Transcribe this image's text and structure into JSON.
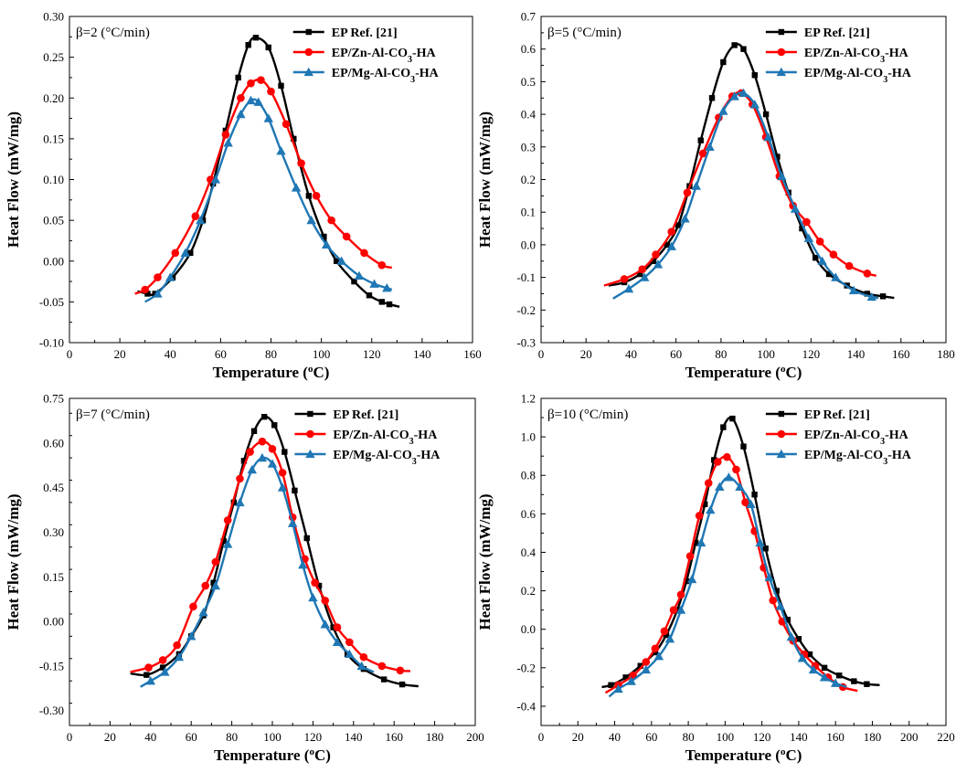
{
  "figure": {
    "panels": [
      {
        "panel_label": "β=2 (°C/min)"
      },
      {
        "panel_label": "β=5 (°C/min)"
      },
      {
        "panel_label": "β=7 (°C/min)"
      },
      {
        "panel_label": "β=10 (°C/min)"
      }
    ]
  },
  "chart_data": [
    {
      "type": "line",
      "panel_label": "β=2 (°C/min)",
      "xlabel": "Temperature (°C)",
      "ylabel": "Heat Flow (mW/mg)",
      "xlim": [
        0,
        160
      ],
      "ylim": [
        -0.1,
        0.3
      ],
      "xticks": [
        0,
        20,
        40,
        60,
        80,
        100,
        120,
        140,
        160
      ],
      "xtick_labels": [
        "0",
        "20",
        "40",
        "60",
        "80",
        "100",
        "120",
        "140",
        "160"
      ],
      "yticks": [
        -0.1,
        -0.05,
        0.0,
        0.05,
        0.1,
        0.15,
        0.2,
        0.25,
        0.3
      ],
      "ytick_labels": [
        "-0.10",
        "-0.05",
        "0.00",
        "0.05",
        "0.10",
        "0.15",
        "0.20",
        "0.25",
        "0.30"
      ],
      "grid": false,
      "legend_position": "top-right",
      "series": [
        {
          "name": "EP Ref. [21]",
          "color": "#000000",
          "marker": "square",
          "x": [
            27,
            31,
            34,
            41,
            48,
            53,
            57,
            62,
            67,
            71,
            74,
            79,
            84,
            89,
            95,
            101,
            106,
            113,
            119,
            124,
            127,
            131
          ],
          "y": [
            -0.037,
            -0.04,
            -0.04,
            -0.02,
            0.01,
            0.05,
            0.095,
            0.16,
            0.225,
            0.265,
            0.274,
            0.262,
            0.215,
            0.15,
            0.08,
            0.03,
            0.0,
            -0.025,
            -0.042,
            -0.05,
            -0.053,
            -0.056
          ]
        },
        {
          "name": "EP/Zn-Al-CO3-HA",
          "color": "#ff0000",
          "marker": "circle",
          "x": [
            26,
            30,
            35,
            42,
            50,
            56,
            62,
            68,
            72,
            76,
            80,
            86,
            92,
            98,
            104,
            110,
            117,
            124,
            128
          ],
          "y": [
            -0.04,
            -0.035,
            -0.02,
            0.01,
            0.055,
            0.1,
            0.155,
            0.2,
            0.218,
            0.222,
            0.208,
            0.168,
            0.12,
            0.08,
            0.05,
            0.03,
            0.01,
            -0.005,
            -0.008
          ]
        },
        {
          "name": "EP/Mg-Al-CO3-HA",
          "color": "#1f77b4",
          "marker": "triangle",
          "x": [
            30,
            35,
            40,
            46,
            52,
            58,
            63,
            68,
            72,
            75,
            79,
            84,
            90,
            96,
            102,
            108,
            115,
            121,
            126,
            128
          ],
          "y": [
            -0.05,
            -0.04,
            -0.02,
            0.01,
            0.05,
            0.1,
            0.145,
            0.18,
            0.197,
            0.195,
            0.175,
            0.135,
            0.09,
            0.05,
            0.02,
            0.0,
            -0.018,
            -0.028,
            -0.033,
            -0.035
          ]
        }
      ]
    },
    {
      "type": "line",
      "panel_label": "β=5 (°C/min)",
      "xlabel": "Temperature (°C)",
      "ylabel": "Heat Flow (mW/mg)",
      "xlim": [
        0,
        180
      ],
      "ylim": [
        -0.3,
        0.7
      ],
      "xticks": [
        0,
        20,
        40,
        60,
        80,
        100,
        120,
        140,
        160,
        180
      ],
      "xtick_labels": [
        "0",
        "20",
        "40",
        "60",
        "80",
        "100",
        "120",
        "140",
        "160",
        "180"
      ],
      "yticks": [
        -0.3,
        -0.2,
        -0.1,
        0.0,
        0.1,
        0.2,
        0.3,
        0.4,
        0.5,
        0.6,
        0.7
      ],
      "ytick_labels": [
        "-0.3",
        "-0.2",
        "-0.1",
        "0.0",
        "0.1",
        "0.2",
        "0.3",
        "0.4",
        "0.5",
        "0.6",
        "0.7"
      ],
      "grid": false,
      "legend_position": "top-right",
      "series": [
        {
          "name": "EP Ref. [21]",
          "color": "#000000",
          "marker": "square",
          "x": [
            30,
            37,
            44,
            50,
            56,
            61,
            66,
            71,
            76,
            81,
            86,
            90,
            95,
            100,
            105,
            110,
            116,
            122,
            128,
            136,
            145,
            152,
            157
          ],
          "y": [
            -0.125,
            -0.115,
            -0.09,
            -0.05,
            0.0,
            0.06,
            0.18,
            0.32,
            0.45,
            0.56,
            0.612,
            0.6,
            0.52,
            0.4,
            0.27,
            0.16,
            0.05,
            -0.04,
            -0.09,
            -0.125,
            -0.15,
            -0.158,
            -0.163
          ]
        },
        {
          "name": "EP/Zn-Al-CO3-HA",
          "color": "#ff0000",
          "marker": "circle",
          "x": [
            28,
            37,
            45,
            51,
            58,
            65,
            72,
            79,
            85,
            89,
            94,
            100,
            106,
            112,
            118,
            124,
            130,
            137,
            145,
            149
          ],
          "y": [
            -0.125,
            -0.105,
            -0.075,
            -0.03,
            0.04,
            0.16,
            0.28,
            0.39,
            0.455,
            0.465,
            0.43,
            0.33,
            0.21,
            0.12,
            0.07,
            0.01,
            -0.03,
            -0.065,
            -0.088,
            -0.095
          ]
        },
        {
          "name": "EP/Mg-Al-CO3-HA",
          "color": "#1f77b4",
          "marker": "triangle",
          "x": [
            32,
            39,
            46,
            52,
            58,
            64,
            69,
            75,
            81,
            86,
            90,
            95,
            101,
            107,
            113,
            119,
            125,
            131,
            139,
            147,
            150
          ],
          "y": [
            -0.165,
            -0.135,
            -0.1,
            -0.06,
            -0.005,
            0.08,
            0.18,
            0.3,
            0.41,
            0.455,
            0.465,
            0.43,
            0.33,
            0.21,
            0.11,
            0.02,
            -0.05,
            -0.1,
            -0.14,
            -0.16,
            -0.163
          ]
        }
      ]
    },
    {
      "type": "line",
      "panel_label": "β=7 (°C/min)",
      "xlabel": "Temperature (°C)",
      "ylabel": "Heat Flow (mW/mg)",
      "xlim": [
        0,
        200
      ],
      "ylim": [
        -0.35,
        0.75
      ],
      "xticks": [
        0,
        20,
        40,
        60,
        80,
        100,
        120,
        140,
        160,
        180,
        200
      ],
      "xtick_labels": [
        "0",
        "20",
        "40",
        "60",
        "80",
        "100",
        "120",
        "140",
        "160",
        "180",
        "200"
      ],
      "yticks": [
        -0.3,
        -0.15,
        0.0,
        0.15,
        0.3,
        0.45,
        0.6,
        0.75
      ],
      "ytick_labels": [
        "-0.30",
        "-0.15",
        "0.00",
        "0.15",
        "0.30",
        "0.45",
        "0.60",
        "0.75"
      ],
      "grid": false,
      "legend_position": "top-right",
      "series": [
        {
          "name": "EP Ref. [21]",
          "color": "#000000",
          "marker": "square",
          "x": [
            30,
            38,
            46,
            54,
            60,
            66,
            71,
            76,
            81,
            86,
            91,
            96,
            101,
            106,
            111,
            117,
            123,
            130,
            137,
            145,
            155,
            164,
            172
          ],
          "y": [
            -0.175,
            -0.18,
            -0.155,
            -0.11,
            -0.05,
            0.02,
            0.13,
            0.27,
            0.4,
            0.54,
            0.64,
            0.688,
            0.66,
            0.57,
            0.44,
            0.28,
            0.12,
            -0.02,
            -0.11,
            -0.16,
            -0.195,
            -0.212,
            -0.218
          ]
        },
        {
          "name": "EP/Zn-Al-CO3-HA",
          "color": "#ff0000",
          "marker": "circle",
          "x": [
            30,
            39,
            46,
            53,
            61,
            67,
            72,
            78,
            84,
            89,
            95,
            100,
            105,
            110,
            116,
            121,
            126,
            132,
            138,
            145,
            154,
            163,
            168
          ],
          "y": [
            -0.17,
            -0.155,
            -0.13,
            -0.08,
            0.05,
            0.12,
            0.2,
            0.34,
            0.48,
            0.57,
            0.605,
            0.58,
            0.5,
            0.35,
            0.21,
            0.13,
            0.07,
            -0.02,
            -0.07,
            -0.12,
            -0.15,
            -0.165,
            -0.167
          ]
        },
        {
          "name": "EP/Mg-Al-CO3-HA",
          "color": "#1f77b4",
          "marker": "triangle",
          "x": [
            35,
            40,
            47,
            54,
            60,
            66,
            72,
            78,
            84,
            90,
            95,
            100,
            105,
            110,
            115,
            120,
            126,
            132,
            138,
            144,
            150
          ],
          "y": [
            -0.22,
            -0.2,
            -0.17,
            -0.12,
            -0.05,
            0.03,
            0.12,
            0.26,
            0.4,
            0.51,
            0.55,
            0.53,
            0.45,
            0.33,
            0.19,
            0.08,
            -0.01,
            -0.07,
            -0.11,
            -0.15,
            -0.17
          ]
        }
      ]
    },
    {
      "type": "line",
      "panel_label": "β=10 (°C/min)",
      "xlabel": "Temperature (°C)",
      "ylabel": "Heat Flow (mW/mg)",
      "xlim": [
        0,
        220
      ],
      "ylim": [
        -0.5,
        1.2
      ],
      "xticks": [
        0,
        20,
        40,
        60,
        80,
        100,
        120,
        140,
        160,
        180,
        200,
        220
      ],
      "xtick_labels": [
        "0",
        "20",
        "40",
        "60",
        "80",
        "100",
        "120",
        "140",
        "160",
        "180",
        "200",
        "220"
      ],
      "yticks": [
        -0.4,
        -0.2,
        0.0,
        0.2,
        0.4,
        0.6,
        0.8,
        1.0,
        1.2
      ],
      "ytick_labels": [
        "-0.4",
        "-0.2",
        "0.0",
        "0.2",
        "0.4",
        "0.6",
        "0.8",
        "1.0",
        "1.2"
      ],
      "grid": false,
      "legend_position": "top-right",
      "series": [
        {
          "name": "EP Ref. [21]",
          "color": "#000000",
          "marker": "square",
          "x": [
            33,
            38,
            46,
            54,
            62,
            68,
            74,
            79,
            84,
            89,
            94,
            99,
            104,
            110,
            116,
            122,
            128,
            134,
            140,
            146,
            154,
            162,
            170,
            177,
            184
          ],
          "y": [
            -0.3,
            -0.29,
            -0.25,
            -0.19,
            -0.12,
            -0.03,
            0.1,
            0.25,
            0.45,
            0.65,
            0.88,
            1.05,
            1.095,
            0.95,
            0.7,
            0.42,
            0.2,
            0.05,
            -0.05,
            -0.13,
            -0.2,
            -0.24,
            -0.27,
            -0.285,
            -0.29
          ]
        },
        {
          "name": "EP/Zn-Al-CO3-HA",
          "color": "#ff0000",
          "marker": "circle",
          "x": [
            35,
            42,
            50,
            57,
            62,
            67,
            72,
            76,
            81,
            86,
            91,
            96,
            101,
            106,
            111,
            116,
            121,
            126,
            131,
            137,
            143,
            149,
            156,
            164,
            172
          ],
          "y": [
            -0.33,
            -0.29,
            -0.24,
            -0.17,
            -0.1,
            -0.01,
            0.1,
            0.18,
            0.38,
            0.59,
            0.76,
            0.87,
            0.895,
            0.83,
            0.66,
            0.51,
            0.32,
            0.15,
            0.04,
            -0.06,
            -0.13,
            -0.19,
            -0.25,
            -0.3,
            -0.32
          ]
        },
        {
          "name": "EP/Mg-Al-CO3-HA",
          "color": "#1f77b4",
          "marker": "triangle",
          "x": [
            37,
            42,
            49,
            57,
            64,
            70,
            76,
            82,
            87,
            92,
            97,
            102,
            108,
            114,
            119,
            124,
            130,
            136,
            142,
            148,
            154,
            160,
            166
          ],
          "y": [
            -0.35,
            -0.31,
            -0.27,
            -0.21,
            -0.14,
            -0.05,
            0.1,
            0.26,
            0.45,
            0.62,
            0.74,
            0.79,
            0.74,
            0.65,
            0.45,
            0.27,
            0.12,
            -0.04,
            -0.15,
            -0.21,
            -0.25,
            -0.28,
            -0.3
          ]
        }
      ]
    }
  ]
}
